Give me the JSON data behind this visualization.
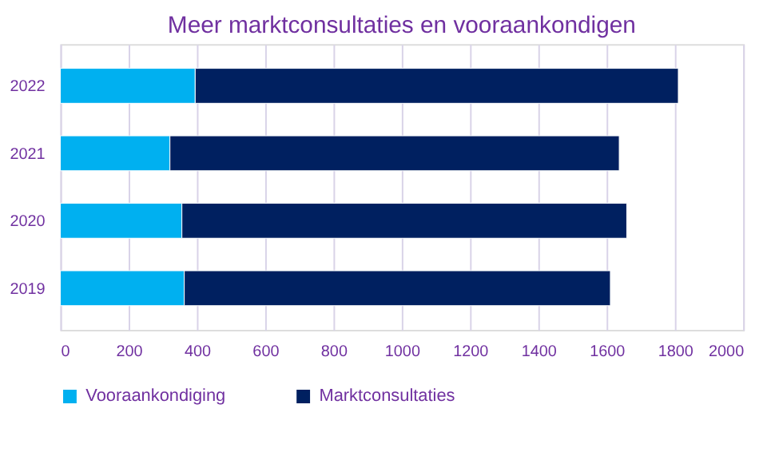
{
  "chart_data": {
    "type": "bar",
    "orientation": "horizontal",
    "stacked": true,
    "title": "Meer marktconsultaties en vooraankondigen",
    "categories": [
      "2022",
      "2021",
      "2020",
      "2019"
    ],
    "series": [
      {
        "name": "Vooraankondiging",
        "color": "#00b0f0",
        "values": [
          395,
          321,
          356,
          363
        ]
      },
      {
        "name": "Marktconsultaties",
        "color": "#002060",
        "values": [
          1415,
          1316,
          1303,
          1248
        ]
      }
    ],
    "xlim": [
      0,
      2000
    ],
    "xticks": [
      0,
      200,
      400,
      600,
      800,
      1000,
      1200,
      1400,
      1600,
      1800,
      2000
    ],
    "grid": "x",
    "legend": "bottom"
  }
}
